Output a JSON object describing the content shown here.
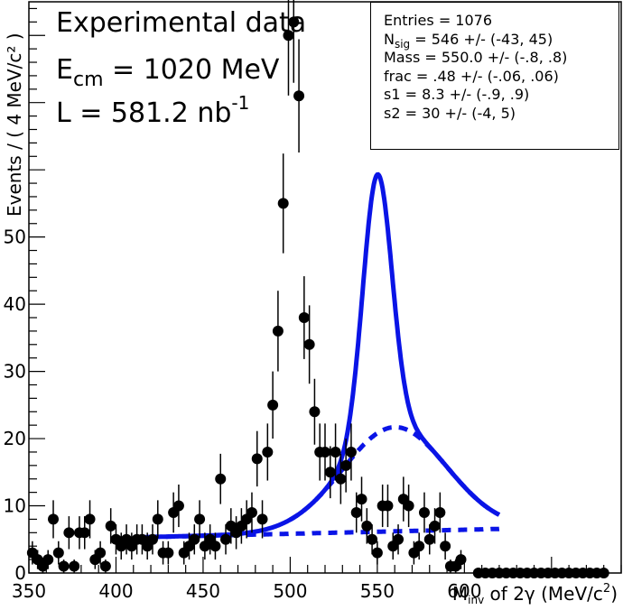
{
  "chart_data": {
    "type": "scatter",
    "title_lines": {
      "line1": "Experimental data",
      "line2_main": "E",
      "line2_sub": "cm",
      "line2_rest": " = 1020 MeV",
      "line3_main": "L = 581.2 nb",
      "line3_sup": "-1"
    },
    "xlabel": {
      "main": "M",
      "sub": "inv",
      "rest": " of 2γ  (MeV/c",
      "sup": "2",
      "end": ")"
    },
    "ylabel": "Events / ( 4 MeV/c² )",
    "xlim": [
      350,
      690
    ],
    "ylim": [
      0,
      85
    ],
    "x_ticks": [
      350,
      400,
      450,
      500,
      550,
      600
    ],
    "y_ticks": [
      0,
      10,
      20,
      30,
      40,
      50
    ],
    "stats": {
      "entries": "Entries = 1076",
      "nsig_main": "N",
      "nsig_sub": "sig",
      "nsig_rest": " = 546 +/- (-43, 45)",
      "mass": "Mass = 550.0 +/- (-.8, .8)",
      "frac": "frac = .48 +/- (-.06, .06)",
      "s1": "s1 = 8.3 +/- (-.9, .9)",
      "s2": "s2 = 30 +/- (-4, 5)"
    },
    "colors": {
      "fit": "#0a14e6",
      "points": "#000000"
    },
    "points": [
      [
        352,
        3
      ],
      [
        355,
        2
      ],
      [
        358,
        1
      ],
      [
        361,
        2
      ],
      [
        364,
        8
      ],
      [
        367,
        3
      ],
      [
        370,
        1
      ],
      [
        373,
        6
      ],
      [
        376,
        1
      ],
      [
        379,
        6
      ],
      [
        382,
        6
      ],
      [
        385,
        8
      ],
      [
        388,
        2
      ],
      [
        391,
        3
      ],
      [
        394,
        1
      ],
      [
        397,
        7
      ],
      [
        400,
        5
      ],
      [
        403,
        4
      ],
      [
        406,
        5
      ],
      [
        409,
        4
      ],
      [
        412,
        5
      ],
      [
        415,
        5
      ],
      [
        418,
        4
      ],
      [
        421,
        5
      ],
      [
        424,
        8
      ],
      [
        427,
        3
      ],
      [
        430,
        3
      ],
      [
        433,
        9
      ],
      [
        436,
        10
      ],
      [
        439,
        3
      ],
      [
        442,
        4
      ],
      [
        445,
        5
      ],
      [
        448,
        8
      ],
      [
        451,
        4
      ],
      [
        454,
        5
      ],
      [
        457,
        4
      ],
      [
        460,
        14
      ],
      [
        463,
        5
      ],
      [
        466,
        7
      ],
      [
        469,
        6
      ],
      [
        472,
        7
      ],
      [
        475,
        8
      ],
      [
        478,
        9
      ],
      [
        481,
        17
      ],
      [
        484,
        8
      ],
      [
        487,
        18
      ],
      [
        490,
        25
      ],
      [
        493,
        36
      ],
      [
        496,
        55
      ],
      [
        499,
        80
      ],
      [
        502,
        82
      ],
      [
        505,
        71
      ],
      [
        508,
        38
      ],
      [
        511,
        34
      ],
      [
        514,
        24
      ],
      [
        517,
        18
      ],
      [
        520,
        18
      ],
      [
        523,
        15
      ],
      [
        526,
        18
      ],
      [
        529,
        14
      ],
      [
        532,
        16
      ],
      [
        535,
        18
      ],
      [
        538,
        9
      ],
      [
        541,
        11
      ],
      [
        544,
        7
      ],
      [
        547,
        5
      ],
      [
        550,
        3
      ],
      [
        553,
        10
      ],
      [
        556,
        10
      ],
      [
        559,
        4
      ],
      [
        562,
        5
      ],
      [
        565,
        11
      ],
      [
        568,
        10
      ],
      [
        571,
        3
      ],
      [
        574,
        4
      ],
      [
        577,
        9
      ],
      [
        580,
        5
      ],
      [
        583,
        7
      ],
      [
        586,
        9
      ],
      [
        589,
        4
      ],
      [
        592,
        1
      ],
      [
        595,
        1
      ],
      [
        598,
        2
      ]
    ],
    "zero_bins": [
      608,
      680
    ]
  }
}
